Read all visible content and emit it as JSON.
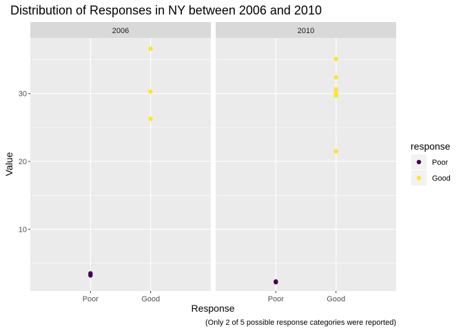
{
  "chart_data": {
    "type": "scatter",
    "title": "Distribution of Responses in NY between 2006 and 2010",
    "xlabel": "Response",
    "ylabel": "Value",
    "caption": "(Only 2 of 5 possible response categories were reported)",
    "categories": [
      "Poor",
      "Good"
    ],
    "ylim": [
      0.9,
      38.2
    ],
    "yticks": [
      10,
      20,
      30
    ],
    "grid": true,
    "legend": {
      "title": "response",
      "position": "right",
      "entries": [
        {
          "label": "Poor",
          "color": "#440154"
        },
        {
          "label": "Good",
          "color": "#FDE725"
        }
      ]
    },
    "facets": [
      {
        "label": "2006",
        "series": [
          {
            "name": "Poor",
            "category": "Poor",
            "values": [
              3.2,
              3.4,
              3.5
            ]
          },
          {
            "name": "Good",
            "category": "Good",
            "values": [
              26.3,
              30.3,
              36.6
            ]
          }
        ]
      },
      {
        "label": "2010",
        "series": [
          {
            "name": "Poor",
            "category": "Poor",
            "values": [
              2.2,
              2.3
            ]
          },
          {
            "name": "Good",
            "category": "Good",
            "values": [
              21.5,
              29.7,
              30.0,
              30.6,
              32.4,
              35.1
            ]
          }
        ]
      }
    ]
  }
}
